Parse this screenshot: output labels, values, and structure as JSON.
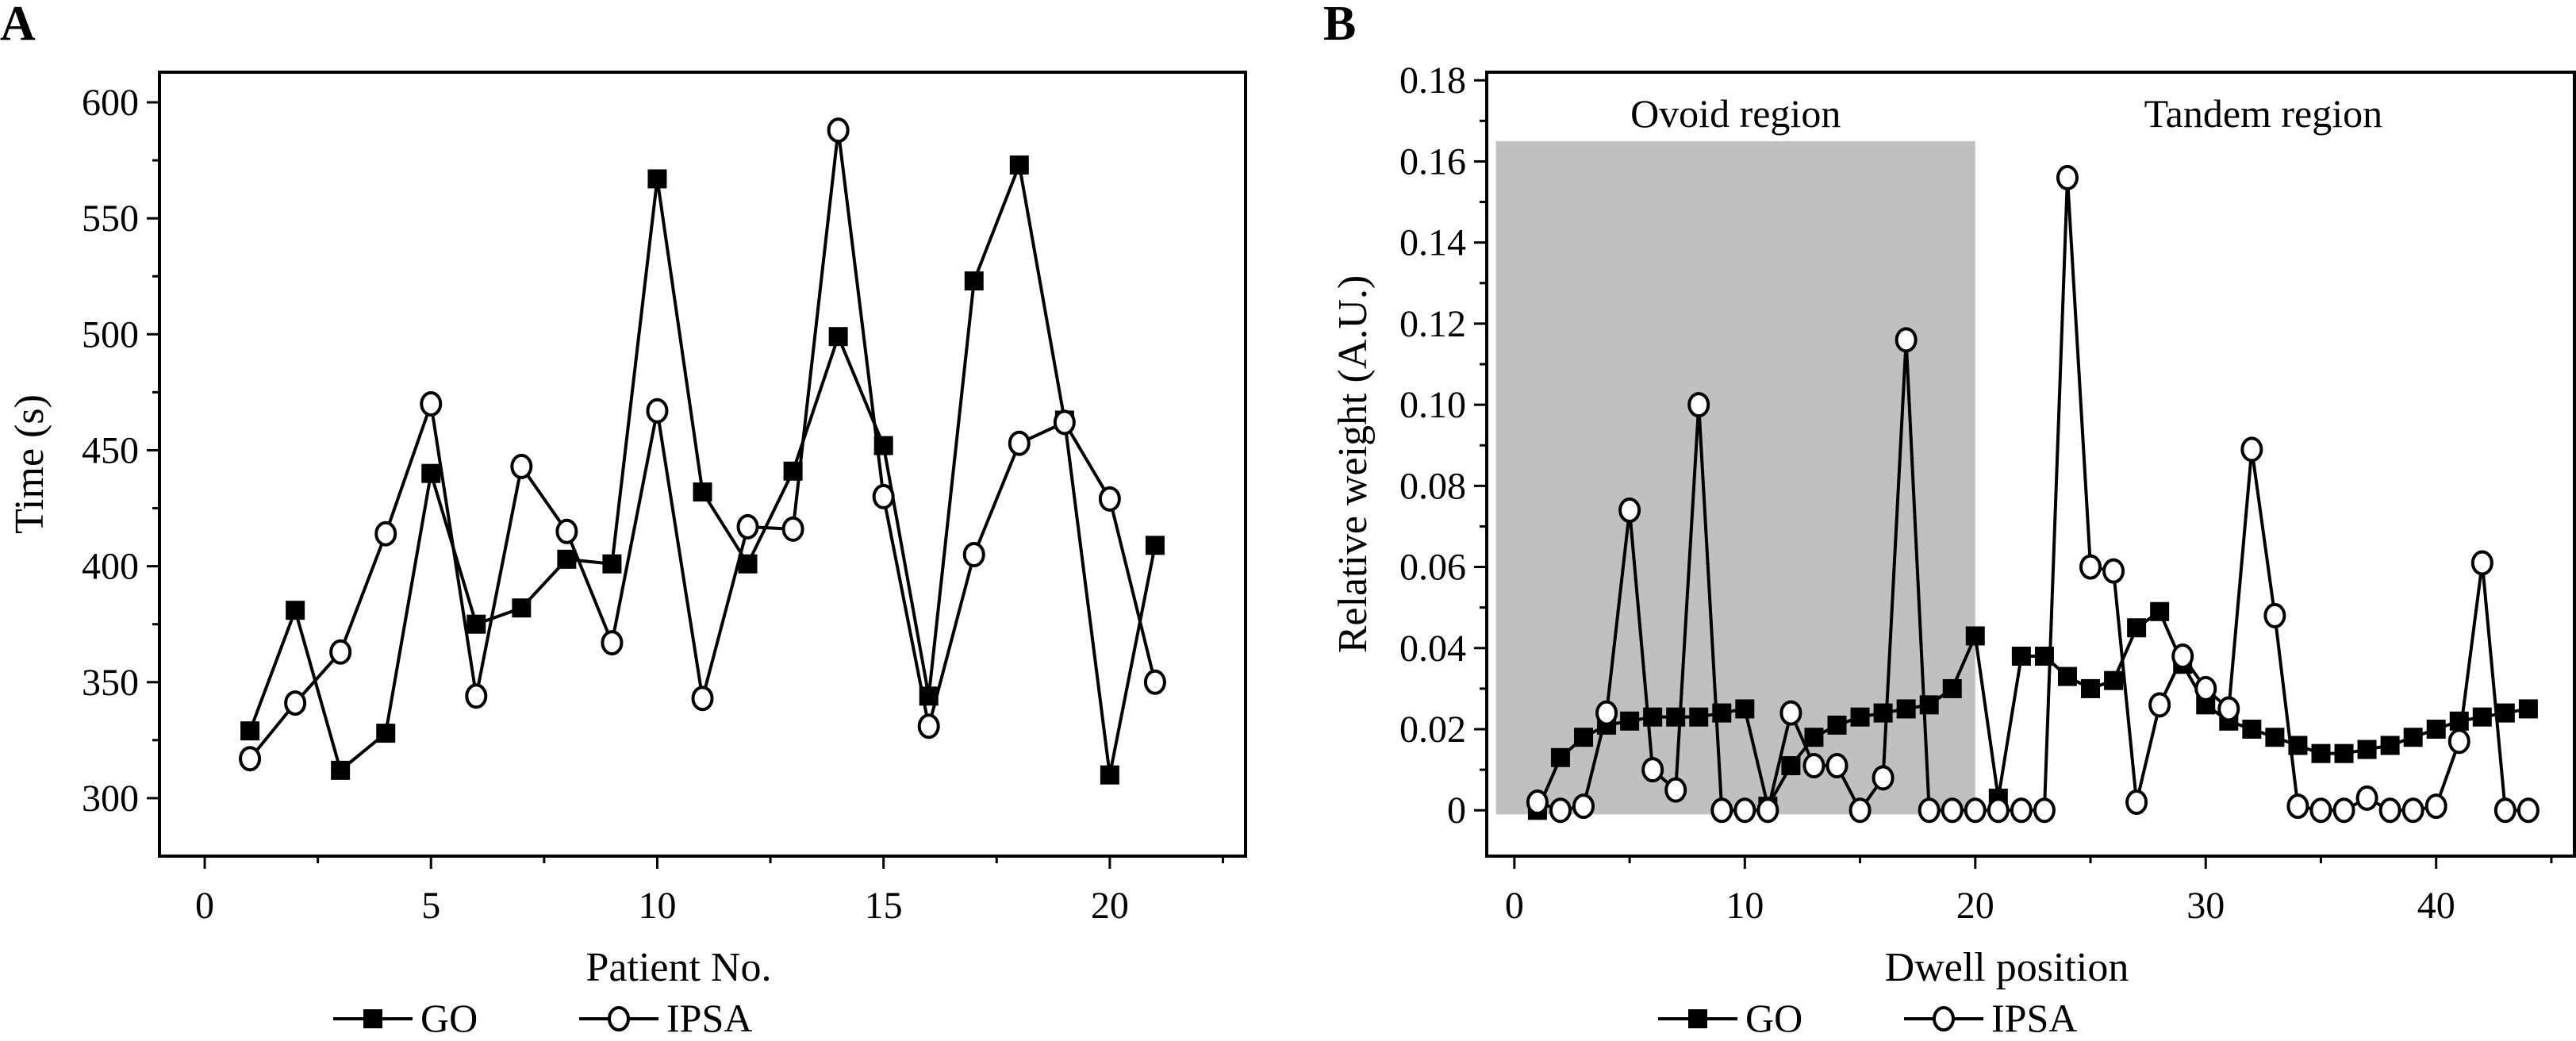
{
  "chart_data": [
    {
      "panel_label": "A",
      "type": "line",
      "xlabel": "Patient No.",
      "ylabel": "Time (s)",
      "xlim": [
        -1,
        23
      ],
      "ylim": [
        275,
        613
      ],
      "xticks": [
        0,
        5,
        10,
        15,
        20
      ],
      "yticks": [
        300,
        350,
        400,
        450,
        500,
        550,
        600
      ],
      "grid": false,
      "legend_position": "bottom",
      "x": [
        1,
        2,
        3,
        4,
        5,
        6,
        7,
        8,
        9,
        10,
        11,
        12,
        13,
        14,
        15,
        16,
        17,
        18,
        19,
        20,
        21
      ],
      "series": [
        {
          "name": "GO",
          "marker": "filled-square",
          "values": [
            329,
            381,
            312,
            328,
            440,
            375,
            382,
            403,
            401,
            567,
            432,
            401,
            441,
            499,
            452,
            344,
            523,
            573,
            463,
            310,
            409
          ]
        },
        {
          "name": "IPSA",
          "marker": "open-circle",
          "values": [
            317,
            341,
            363,
            414,
            470,
            344,
            443,
            415,
            367,
            467,
            343,
            417,
            416,
            588,
            430,
            331,
            405,
            453,
            462,
            429,
            350
          ]
        }
      ]
    },
    {
      "panel_label": "B",
      "type": "line",
      "xlabel": "Dwell position",
      "ylabel": "Relative weight (A.U.)",
      "xlim": [
        -1.2,
        46
      ],
      "ylim": [
        -0.0113,
        0.182
      ],
      "xticks": [
        0,
        10,
        20,
        30,
        40
      ],
      "yticks": [
        0,
        0.02,
        0.04,
        0.06,
        0.08,
        0.1,
        0.12,
        0.14,
        0.16,
        0.18
      ],
      "ytick_labels": [
        "0",
        "0.02",
        "0.04",
        "0.06",
        "0.08",
        "0.10",
        "0.12",
        "0.14",
        "0.16",
        "0.18"
      ],
      "grid": false,
      "legend_position": "bottom",
      "regions": [
        {
          "label": "Ovoid region",
          "x_range": [
            -0.8,
            20
          ],
          "y_range": [
            -0.001,
            0.165
          ],
          "color": "#c0c0c0"
        },
        {
          "label": "Tandem region"
        }
      ],
      "x": [
        1,
        2,
        3,
        4,
        5,
        6,
        7,
        8,
        9,
        10,
        11,
        12,
        13,
        14,
        15,
        16,
        17,
        18,
        19,
        20,
        21,
        22,
        23,
        24,
        25,
        26,
        27,
        28,
        29,
        30,
        31,
        32,
        33,
        34,
        35,
        36,
        37,
        38,
        39,
        40,
        41,
        42,
        43,
        44
      ],
      "series": [
        {
          "name": "GO",
          "marker": "filled-square",
          "values": [
            0,
            0.013,
            0.018,
            0.021,
            0.022,
            0.023,
            0.023,
            0.023,
            0.024,
            0.025,
            0.001,
            0.011,
            0.018,
            0.021,
            0.023,
            0.024,
            0.025,
            0.026,
            0.03,
            0.043,
            0.003,
            0.038,
            0.038,
            0.033,
            0.03,
            0.032,
            0.045,
            0.049,
            0.036,
            0.026,
            0.022,
            0.02,
            0.018,
            0.016,
            0.014,
            0.014,
            0.015,
            0.016,
            0.018,
            0.02,
            0.022,
            0.023,
            0.024,
            0.025
          ]
        },
        {
          "name": "IPSA",
          "marker": "open-circle",
          "values": [
            0.002,
            0,
            0.001,
            0.024,
            0.074,
            0.01,
            0.005,
            0.1,
            0,
            0,
            0,
            0.024,
            0.011,
            0.011,
            0,
            0.008,
            0.116,
            0,
            0,
            0,
            0,
            0,
            0,
            0.156,
            0.06,
            0.059,
            0.002,
            0.026,
            0.038,
            0.03,
            0.025,
            0.089,
            0.048,
            0.001,
            0,
            0,
            0.003,
            0,
            0,
            0.001,
            0.017,
            0.061,
            0,
            0
          ]
        }
      ]
    }
  ]
}
